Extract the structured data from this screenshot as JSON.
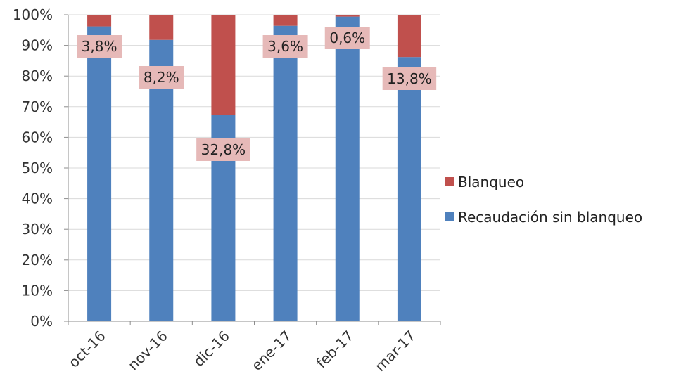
{
  "chart_data": {
    "type": "bar",
    "stacked": true,
    "normalized": true,
    "categories": [
      "oct-16",
      "nov-16",
      "dic-16",
      "ene-17",
      "feb-17",
      "mar-17"
    ],
    "series": [
      {
        "name": "Recaudación sin blanqueo",
        "color": "#4f81bd",
        "values": [
          96.2,
          91.8,
          67.2,
          96.4,
          99.4,
          86.2
        ]
      },
      {
        "name": "Blanqueo",
        "color": "#c0504d",
        "values": [
          3.8,
          8.2,
          32.8,
          3.6,
          0.6,
          13.8
        ]
      }
    ],
    "data_labels": [
      "3,8%",
      "8,2%",
      "32,8%",
      "3,6%",
      "0,6%",
      "13,8%"
    ],
    "data_label_color": "#e6b9b8",
    "ylim": [
      0,
      100
    ],
    "yticks": [
      "0%",
      "10%",
      "20%",
      "30%",
      "40%",
      "50%",
      "60%",
      "70%",
      "80%",
      "90%",
      "100%"
    ],
    "grid": true,
    "legend_position": "right",
    "legend": [
      "Blanqueo",
      "Recaudación sin blanqueo"
    ]
  }
}
